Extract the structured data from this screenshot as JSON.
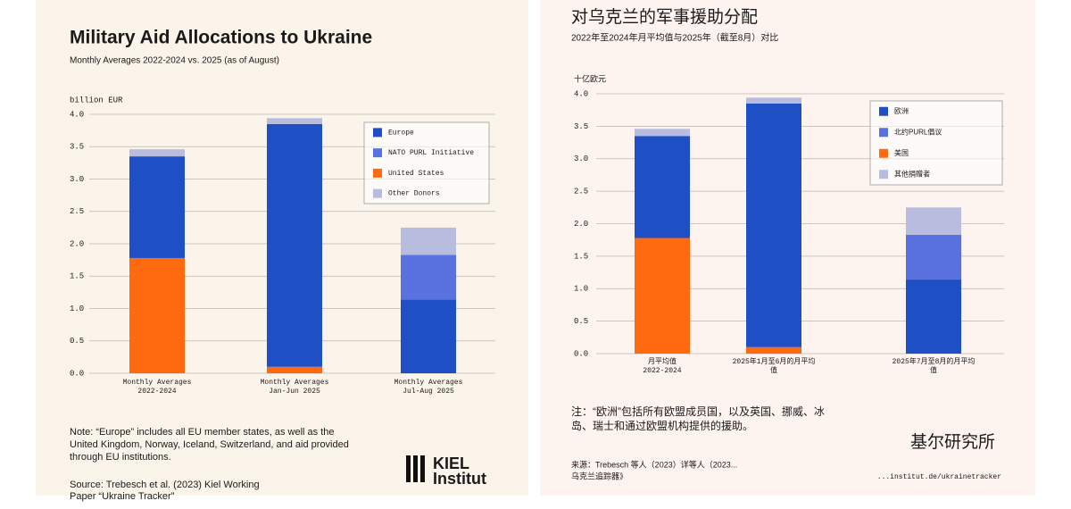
{
  "chart_data": [
    {
      "type": "bar",
      "stacked": true,
      "title": "Military Aid Allocations to Ukraine",
      "subtitle": "Monthly Averages 2022-2024 vs. 2025 (as of August)",
      "y_label": "billion EUR",
      "categories": [
        [
          "Monthly Averages",
          "2022-2024"
        ],
        [
          "Monthly Averages",
          "Jan-Jun 2025"
        ],
        [
          "Monthly Averages",
          "Jul-Aug 2025"
        ]
      ],
      "series": [
        {
          "name": "Europe",
          "color": "#1f4fc4",
          "values": [
            1.57,
            3.75,
            1.14
          ]
        },
        {
          "name": "NATO PURL Initiative",
          "color": "#5a72e0",
          "values": [
            0,
            0,
            0.69
          ]
        },
        {
          "name": "United States",
          "color": "#ff6a10",
          "values": [
            1.78,
            0.1,
            0
          ]
        },
        {
          "name": "Other Donors",
          "color": "#b8bde0",
          "values": [
            0.11,
            0.09,
            0.42
          ]
        }
      ],
      "ylim": [
        0,
        4
      ],
      "yticks": [
        {
          "value": 0,
          "label": "0.0"
        },
        0.5,
        {
          "value": 1,
          "label": "1.0"
        },
        1.5,
        {
          "value": 2,
          "label": "2.0"
        },
        2.5,
        {
          "value": 3,
          "label": "3.0"
        },
        3.5,
        {
          "value": 4,
          "label": "4.0"
        }
      ],
      "grid": true,
      "legend": "upper right",
      "note": [
        "Note: “Europe” includes all EU member states, as well as the",
        "United Kingdom, Norway, Iceland, Switzerland, and aid provided",
        "through EU institutions."
      ],
      "source": [
        "Source: Trebesch et al. (2023) Kiel Working",
        "Paper “Ukraine Tracker”"
      ],
      "logo": [
        "KIEL",
        "Institut"
      ]
    },
    {
      "type": "bar",
      "stacked": true,
      "title": "对乌克兰的军事援助分配",
      "subtitle": "2022年至2024年月平均值与2025年（截至8月）对比",
      "y_label": "十亿欧元",
      "categories": [
        [
          "月平均值",
          "2022-2024"
        ],
        [
          "2025年1月至6月的月平均",
          "值"
        ],
        [
          "2025年7月至8月的月平均",
          "值"
        ]
      ],
      "series": [
        {
          "name": "欧洲",
          "color": "#1f4fc4",
          "values": [
            1.57,
            3.75,
            1.14
          ]
        },
        {
          "name": "北约PURL倡议",
          "color": "#5a72e0",
          "values": [
            0,
            0,
            0.69
          ]
        },
        {
          "name": "美国",
          "color": "#ff6a10",
          "values": [
            1.78,
            0.1,
            0
          ]
        },
        {
          "name": "其他捐赠者",
          "color": "#b8bde0",
          "values": [
            0.11,
            0.09,
            0.42
          ]
        }
      ],
      "ylim": [
        0,
        4
      ],
      "yticks": [
        {
          "value": 0,
          "label": "0.0"
        },
        0.5,
        {
          "value": 1,
          "label": "1.0"
        },
        1.5,
        {
          "value": 2,
          "label": "2.0"
        },
        2.5,
        {
          "value": 3,
          "label": "3.0"
        },
        3.5,
        {
          "value": 4,
          "label": "4.0"
        }
      ],
      "grid": true,
      "legend": "upper right",
      "note": [
        "注：“欧洲”包括所有欧盟成员国，以及英国、挪威、冰",
        "岛、瑞士和通过欧盟机构提供的援助。"
      ],
      "source": [
        "来源：Trebesch 等人（2023）详等人（2023...",
        "乌克兰追踪器》"
      ],
      "source_url": "...institut.de/ukrainetracker",
      "logo": [
        "基尔研究所"
      ]
    }
  ]
}
